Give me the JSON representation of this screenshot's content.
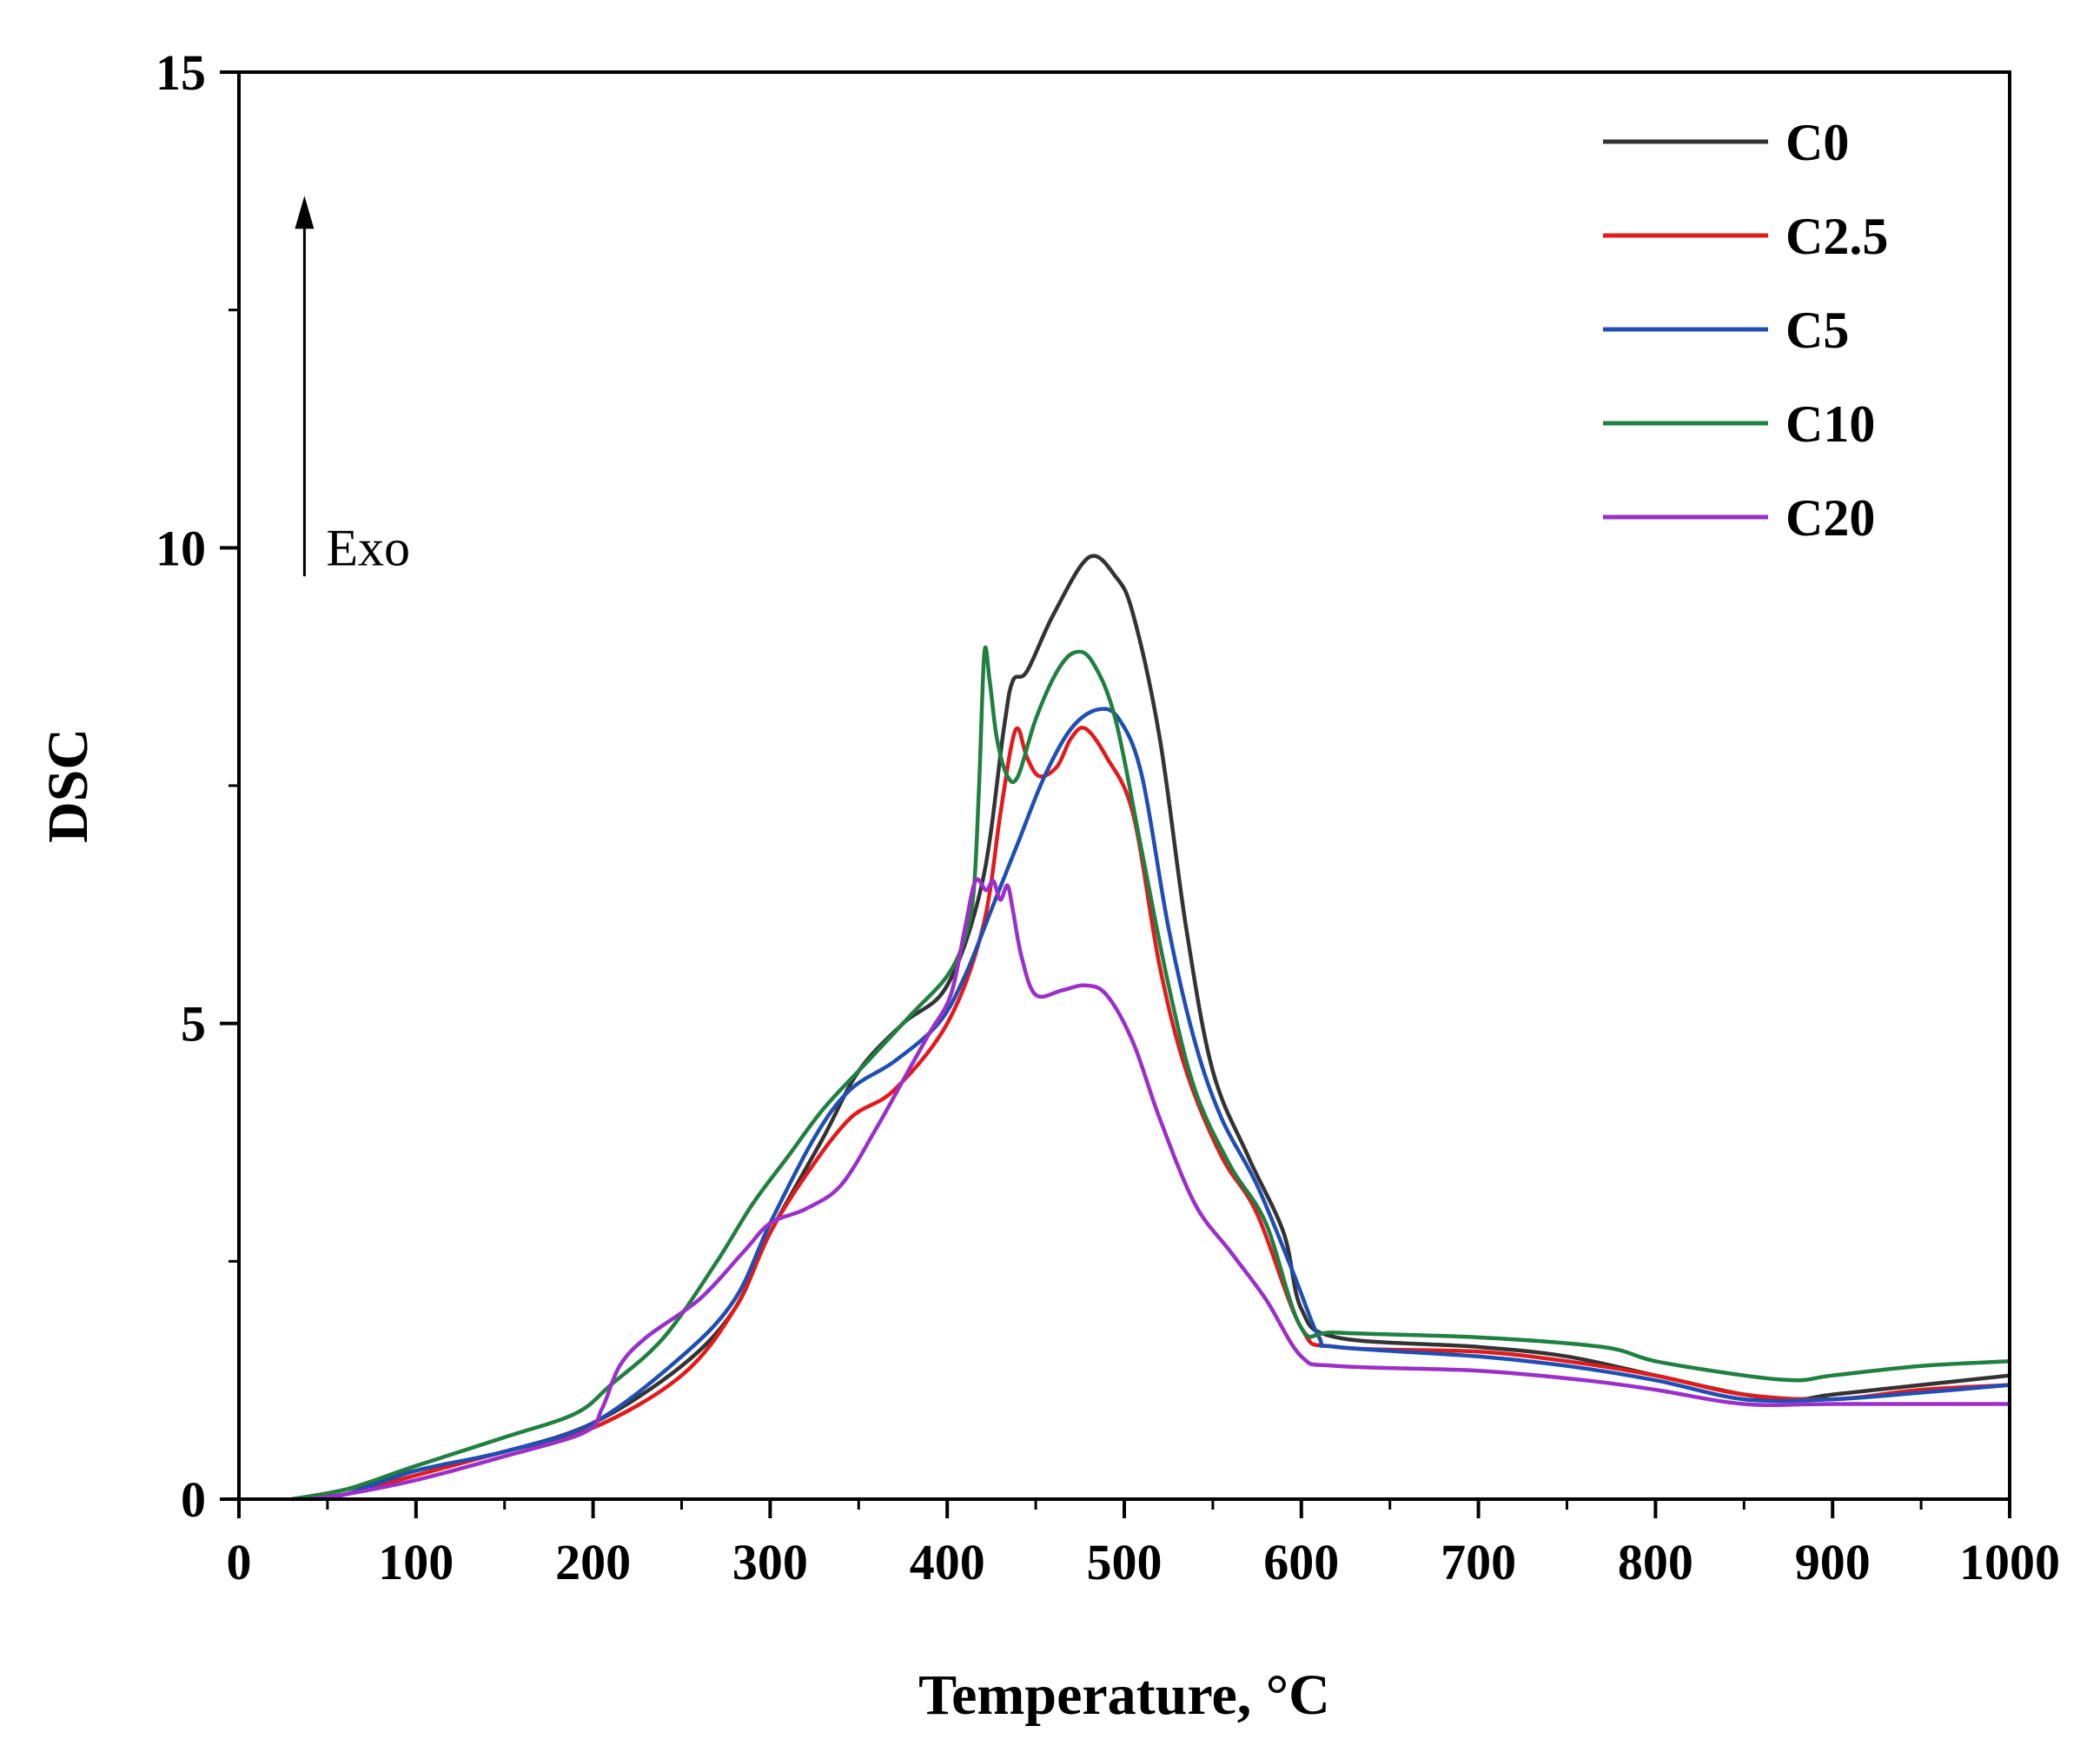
{
  "chart_data": {
    "type": "line",
    "title": "",
    "xlabel": "Temperature, °C",
    "ylabel": "DSC",
    "xlim": [
      0,
      1000
    ],
    "ylim": [
      0,
      15
    ],
    "xticks": [
      0,
      100,
      200,
      300,
      400,
      500,
      600,
      700,
      800,
      900,
      1000
    ],
    "xtick_labels": [
      "0",
      "100",
      "200",
      "300",
      "400",
      "500",
      "600",
      "700",
      "800",
      "900",
      "1000"
    ],
    "yticks": [
      0,
      5,
      10,
      15
    ],
    "ytick_labels": [
      "0",
      "5",
      "10",
      "15"
    ],
    "grid": false,
    "legend_position": "top-right",
    "annotation": {
      "text": "Exo",
      "arrow_x": 37,
      "arrow_y_from": 9.7,
      "arrow_y_to": 13.7
    },
    "series": [
      {
        "name": "C0",
        "color": "#333333",
        "points": [
          [
            30,
            0
          ],
          [
            60,
            0.1
          ],
          [
            100,
            0.3
          ],
          [
            150,
            0.5
          ],
          [
            200,
            0.8
          ],
          [
            250,
            1.4
          ],
          [
            280,
            2.0
          ],
          [
            300,
            2.8
          ],
          [
            330,
            3.8
          ],
          [
            350,
            4.5
          ],
          [
            375,
            5.0
          ],
          [
            400,
            5.4
          ],
          [
            420,
            6.5
          ],
          [
            432,
            8.1
          ],
          [
            437,
            8.6
          ],
          [
            445,
            8.7
          ],
          [
            460,
            9.3
          ],
          [
            480,
            9.9
          ],
          [
            495,
            9.7
          ],
          [
            505,
            9.3
          ],
          [
            520,
            8.0
          ],
          [
            535,
            6.0
          ],
          [
            550,
            4.5
          ],
          [
            570,
            3.6
          ],
          [
            590,
            2.8
          ],
          [
            600,
            2.0
          ],
          [
            620,
            1.7
          ],
          [
            700,
            1.6
          ],
          [
            750,
            1.5
          ],
          [
            800,
            1.3
          ],
          [
            850,
            1.1
          ],
          [
            880,
            1.05
          ],
          [
            900,
            1.1
          ],
          [
            950,
            1.2
          ],
          [
            1000,
            1.3
          ]
        ]
      },
      {
        "name": "C2.5",
        "color": "#e31a1c",
        "points": [
          [
            40,
            0
          ],
          [
            60,
            0.05
          ],
          [
            100,
            0.25
          ],
          [
            150,
            0.5
          ],
          [
            200,
            0.75
          ],
          [
            250,
            1.3
          ],
          [
            280,
            2.0
          ],
          [
            300,
            2.8
          ],
          [
            320,
            3.4
          ],
          [
            345,
            4.0
          ],
          [
            370,
            4.3
          ],
          [
            400,
            5.0
          ],
          [
            420,
            6.0
          ],
          [
            430,
            7.2
          ],
          [
            436,
            7.9
          ],
          [
            440,
            8.1
          ],
          [
            445,
            7.8
          ],
          [
            452,
            7.6
          ],
          [
            462,
            7.7
          ],
          [
            470,
            8.0
          ],
          [
            478,
            8.1
          ],
          [
            490,
            7.8
          ],
          [
            505,
            7.2
          ],
          [
            520,
            5.6
          ],
          [
            535,
            4.5
          ],
          [
            555,
            3.6
          ],
          [
            575,
            3.0
          ],
          [
            600,
            1.8
          ],
          [
            620,
            1.6
          ],
          [
            700,
            1.55
          ],
          [
            750,
            1.45
          ],
          [
            800,
            1.3
          ],
          [
            850,
            1.1
          ],
          [
            900,
            1.05
          ],
          [
            950,
            1.15
          ],
          [
            1000,
            1.2
          ]
        ]
      },
      {
        "name": "C5",
        "color": "#1f4eb4",
        "points": [
          [
            40,
            0
          ],
          [
            60,
            0.05
          ],
          [
            100,
            0.3
          ],
          [
            150,
            0.5
          ],
          [
            200,
            0.8
          ],
          [
            250,
            1.5
          ],
          [
            280,
            2.1
          ],
          [
            300,
            2.9
          ],
          [
            325,
            3.8
          ],
          [
            345,
            4.3
          ],
          [
            370,
            4.6
          ],
          [
            395,
            5.0
          ],
          [
            410,
            5.5
          ],
          [
            425,
            6.2
          ],
          [
            440,
            6.9
          ],
          [
            455,
            7.6
          ],
          [
            470,
            8.1
          ],
          [
            485,
            8.3
          ],
          [
            497,
            8.2
          ],
          [
            510,
            7.6
          ],
          [
            525,
            6.0
          ],
          [
            540,
            4.8
          ],
          [
            555,
            4.0
          ],
          [
            575,
            3.3
          ],
          [
            595,
            2.4
          ],
          [
            610,
            1.7
          ],
          [
            620,
            1.6
          ],
          [
            700,
            1.5
          ],
          [
            750,
            1.4
          ],
          [
            800,
            1.25
          ],
          [
            850,
            1.05
          ],
          [
            900,
            1.05
          ],
          [
            950,
            1.12
          ],
          [
            1000,
            1.2
          ]
        ]
      },
      {
        "name": "C10",
        "color": "#1f8040",
        "points": [
          [
            30,
            0
          ],
          [
            60,
            0.1
          ],
          [
            100,
            0.35
          ],
          [
            150,
            0.65
          ],
          [
            190,
            0.9
          ],
          [
            210,
            1.2
          ],
          [
            240,
            1.7
          ],
          [
            270,
            2.5
          ],
          [
            290,
            3.1
          ],
          [
            310,
            3.6
          ],
          [
            330,
            4.1
          ],
          [
            355,
            4.6
          ],
          [
            380,
            5.1
          ],
          [
            400,
            5.5
          ],
          [
            410,
            5.9
          ],
          [
            415,
            6.4
          ],
          [
            418,
            7.5
          ],
          [
            421,
            8.9
          ],
          [
            424,
            8.6
          ],
          [
            428,
            8.0
          ],
          [
            434,
            7.6
          ],
          [
            440,
            7.6
          ],
          [
            450,
            8.2
          ],
          [
            462,
            8.7
          ],
          [
            472,
            8.9
          ],
          [
            482,
            8.8
          ],
          [
            495,
            8.2
          ],
          [
            510,
            6.8
          ],
          [
            525,
            5.4
          ],
          [
            540,
            4.3
          ],
          [
            560,
            3.5
          ],
          [
            580,
            2.9
          ],
          [
            600,
            1.8
          ],
          [
            620,
            1.75
          ],
          [
            700,
            1.7
          ],
          [
            770,
            1.6
          ],
          [
            800,
            1.45
          ],
          [
            850,
            1.3
          ],
          [
            880,
            1.25
          ],
          [
            900,
            1.3
          ],
          [
            950,
            1.4
          ],
          [
            1000,
            1.45
          ]
        ]
      },
      {
        "name": "C20",
        "color": "#9b2fc9",
        "points": [
          [
            40,
            0
          ],
          [
            60,
            0.05
          ],
          [
            100,
            0.2
          ],
          [
            150,
            0.45
          ],
          [
            195,
            0.7
          ],
          [
            205,
            0.95
          ],
          [
            215,
            1.4
          ],
          [
            230,
            1.7
          ],
          [
            260,
            2.1
          ],
          [
            285,
            2.6
          ],
          [
            300,
            2.9
          ],
          [
            320,
            3.05
          ],
          [
            340,
            3.3
          ],
          [
            360,
            3.9
          ],
          [
            375,
            4.4
          ],
          [
            390,
            4.9
          ],
          [
            402,
            5.3
          ],
          [
            410,
            6.0
          ],
          [
            416,
            6.5
          ],
          [
            422,
            6.4
          ],
          [
            426,
            6.5
          ],
          [
            430,
            6.3
          ],
          [
            434,
            6.45
          ],
          [
            437,
            6.2
          ],
          [
            442,
            5.7
          ],
          [
            450,
            5.3
          ],
          [
            465,
            5.35
          ],
          [
            478,
            5.4
          ],
          [
            490,
            5.3
          ],
          [
            505,
            4.8
          ],
          [
            520,
            4.0
          ],
          [
            540,
            3.1
          ],
          [
            560,
            2.6
          ],
          [
            580,
            2.1
          ],
          [
            600,
            1.5
          ],
          [
            620,
            1.4
          ],
          [
            700,
            1.35
          ],
          [
            760,
            1.25
          ],
          [
            800,
            1.15
          ],
          [
            850,
            1.0
          ],
          [
            900,
            1.0
          ],
          [
            1000,
            1.0
          ]
        ]
      }
    ]
  }
}
